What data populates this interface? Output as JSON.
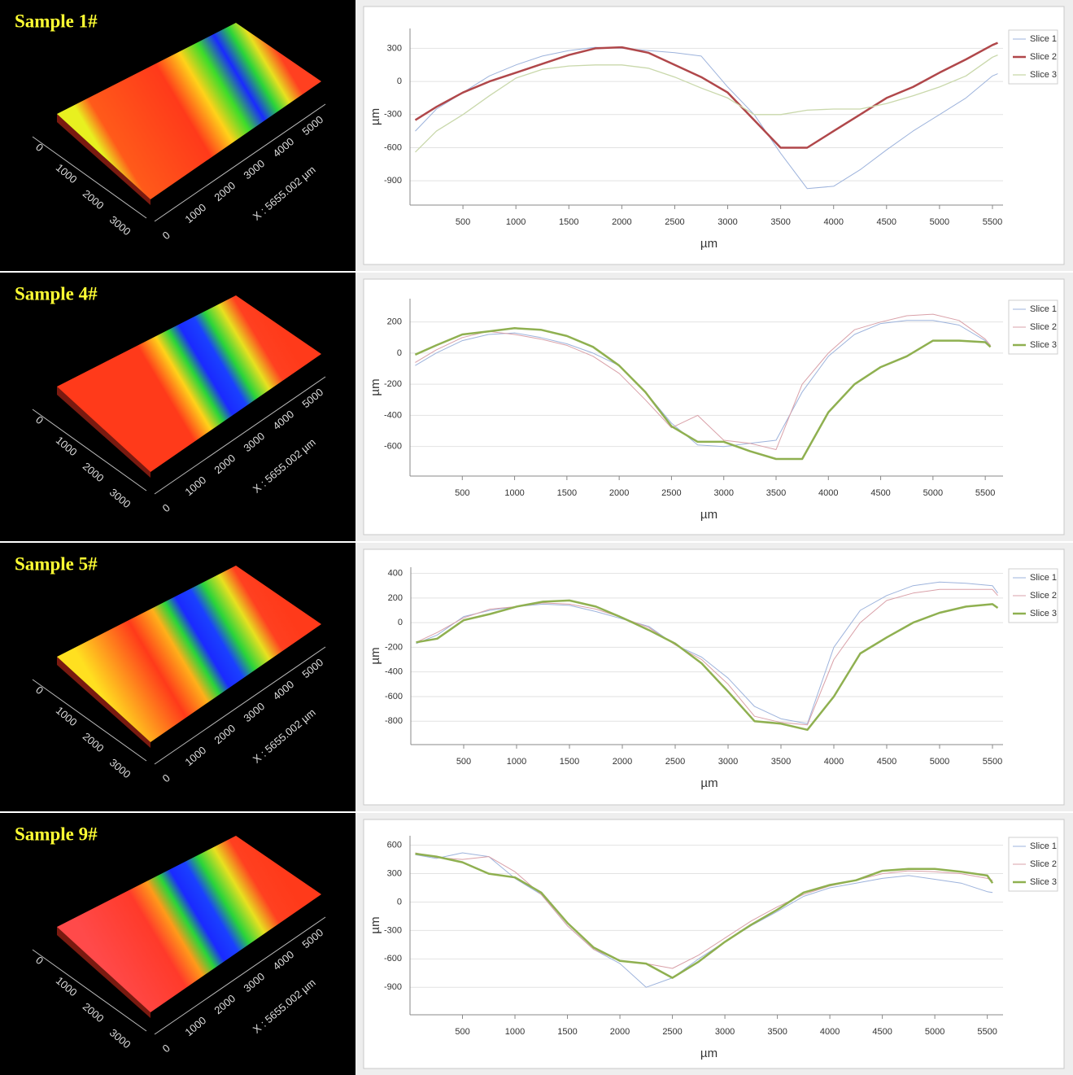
{
  "chart_data": [
    {
      "type": "line",
      "title": "Sample 1#",
      "surface": {
        "x_label": "X : 5655.002 µm",
        "x_ticks": [
          0,
          1000,
          2000,
          3000,
          4000,
          5000
        ],
        "y_ticks": [
          0,
          1000,
          2000,
          3000
        ]
      },
      "xlabel": "µm",
      "ylabel": "µm",
      "grid": true,
      "legend": "right",
      "xlim": [
        0,
        5600
      ],
      "ylim": [
        -1120,
        480
      ],
      "xticks": [
        500,
        1000,
        1500,
        2000,
        2500,
        3000,
        3500,
        4000,
        4500,
        5000,
        5500
      ],
      "yticks": [
        300,
        0,
        -300,
        -600,
        -900
      ],
      "x": [
        50,
        250,
        500,
        750,
        1000,
        1250,
        1500,
        1750,
        2000,
        2250,
        2500,
        2750,
        3000,
        3250,
        3500,
        3750,
        4000,
        4250,
        4500,
        4750,
        5000,
        5250,
        5500,
        5550
      ],
      "series": [
        {
          "name": "Slice 1",
          "color": "#9db3dc",
          "line_width": 1,
          "values": [
            -450,
            -250,
            -100,
            50,
            150,
            230,
            280,
            310,
            300,
            280,
            260,
            230,
            -50,
            -300,
            -650,
            -970,
            -950,
            -800,
            -620,
            -450,
            -300,
            -150,
            50,
            70
          ]
        },
        {
          "name": "Slice 2",
          "color": "#b0474a",
          "line_width": 2.5,
          "values": [
            -350,
            -230,
            -100,
            0,
            80,
            160,
            240,
            300,
            310,
            260,
            150,
            40,
            -100,
            -350,
            -600,
            -600,
            -450,
            -300,
            -150,
            -50,
            80,
            200,
            330,
            350
          ]
        },
        {
          "name": "Slice 3",
          "color": "#c9d8ab",
          "line_width": 1.3,
          "values": [
            -640,
            -450,
            -300,
            -130,
            30,
            110,
            140,
            150,
            150,
            120,
            40,
            -60,
            -150,
            -300,
            -300,
            -260,
            -250,
            -250,
            -200,
            -130,
            -50,
            50,
            220,
            240
          ]
        }
      ]
    },
    {
      "type": "line",
      "title": "Sample 4#",
      "surface": {
        "x_label": "X : 5655.002 µm",
        "x_ticks": [
          0,
          1000,
          2000,
          3000,
          4000,
          5000
        ],
        "y_ticks": [
          0,
          1000,
          2000,
          3000
        ]
      },
      "xlabel": "µm",
      "ylabel": "µm",
      "grid": true,
      "legend": "right",
      "xlim": [
        0,
        5670
      ],
      "ylim": [
        -790,
        350
      ],
      "xticks": [
        500,
        1000,
        1500,
        2000,
        2500,
        3000,
        3500,
        4000,
        4500,
        5000,
        5500
      ],
      "yticks": [
        200,
        0,
        -200,
        -400,
        -600
      ],
      "x": [
        50,
        250,
        500,
        750,
        1000,
        1250,
        1500,
        1750,
        2000,
        2250,
        2500,
        2750,
        3000,
        3250,
        3500,
        3750,
        4000,
        4250,
        4500,
        4750,
        5000,
        5250,
        5500,
        5550
      ],
      "series": [
        {
          "name": "Slice 1",
          "color": "#9db3dc",
          "line_width": 1,
          "values": [
            -80,
            0,
            80,
            120,
            130,
            100,
            60,
            0,
            -80,
            -250,
            -450,
            -590,
            -600,
            -580,
            -560,
            -250,
            -20,
            120,
            190,
            210,
            210,
            180,
            80,
            50
          ]
        },
        {
          "name": "Slice 2",
          "color": "#d9a0a8",
          "line_width": 1,
          "values": [
            -60,
            20,
            100,
            140,
            120,
            90,
            50,
            -20,
            -130,
            -300,
            -480,
            -400,
            -560,
            -580,
            -620,
            -200,
            0,
            150,
            200,
            240,
            250,
            210,
            90,
            50
          ]
        },
        {
          "name": "Slice 3",
          "color": "#8fb050",
          "line_width": 2.5,
          "values": [
            -10,
            50,
            120,
            140,
            160,
            150,
            110,
            40,
            -80,
            -250,
            -470,
            -570,
            -570,
            -630,
            -680,
            -680,
            -380,
            -200,
            -90,
            -20,
            80,
            80,
            70,
            40
          ]
        }
      ]
    },
    {
      "type": "line",
      "title": "Sample 5#",
      "surface": {
        "x_label": "X : 5655.002 µm",
        "x_ticks": [
          0,
          1000,
          2000,
          3000,
          4000,
          5000
        ],
        "y_ticks": [
          0,
          1000,
          2000,
          3000
        ]
      },
      "xlabel": "µm",
      "ylabel": "µm",
      "grid": true,
      "legend": "right",
      "xlim": [
        0,
        5600
      ],
      "ylim": [
        -990,
        450
      ],
      "xticks": [
        500,
        1000,
        1500,
        2000,
        2500,
        3000,
        3500,
        4000,
        4500,
        5000,
        5500
      ],
      "yticks": [
        400,
        200,
        0,
        -200,
        -400,
        -600,
        -800
      ],
      "x": [
        50,
        250,
        500,
        750,
        1000,
        1250,
        1500,
        1750,
        2000,
        2250,
        2500,
        2750,
        3000,
        3250,
        3500,
        3750,
        4000,
        4250,
        4500,
        4750,
        5000,
        5250,
        5500,
        5550
      ],
      "series": [
        {
          "name": "Slice 1",
          "color": "#9db3dc",
          "line_width": 1,
          "values": [
            -170,
            -100,
            50,
            100,
            130,
            150,
            140,
            90,
            30,
            -30,
            -180,
            -280,
            -450,
            -680,
            -780,
            -820,
            -200,
            100,
            220,
            300,
            330,
            320,
            300,
            240
          ]
        },
        {
          "name": "Slice 2",
          "color": "#d9a0a8",
          "line_width": 1,
          "values": [
            -160,
            -80,
            40,
            110,
            130,
            160,
            150,
            110,
            40,
            -40,
            -180,
            -300,
            -500,
            -760,
            -810,
            -830,
            -300,
            0,
            180,
            240,
            270,
            270,
            270,
            220
          ]
        },
        {
          "name": "Slice 3",
          "color": "#8fb050",
          "line_width": 2.5,
          "values": [
            -160,
            -130,
            20,
            70,
            130,
            170,
            180,
            130,
            40,
            -60,
            -170,
            -330,
            -560,
            -800,
            -820,
            -870,
            -600,
            -250,
            -120,
            0,
            80,
            130,
            150,
            120
          ]
        }
      ]
    },
    {
      "type": "line",
      "title": "Sample 9#",
      "surface": {
        "x_label": "X : 5655.002 µm",
        "x_ticks": [
          0,
          1000,
          2000,
          3000,
          4000,
          5000
        ],
        "y_ticks": [
          0,
          1000,
          2000,
          3000
        ]
      },
      "xlabel": "µm",
      "ylabel": "µm",
      "grid": true,
      "legend": "right",
      "xlim": [
        0,
        5650
      ],
      "ylim": [
        -1190,
        700
      ],
      "xticks": [
        500,
        1000,
        1500,
        2000,
        2500,
        3000,
        3500,
        4000,
        4500,
        5000,
        5500
      ],
      "yticks": [
        600,
        300,
        0,
        -300,
        -600,
        -900
      ],
      "x": [
        50,
        250,
        500,
        750,
        1000,
        1250,
        1500,
        1750,
        2000,
        2250,
        2500,
        2750,
        3000,
        3250,
        3500,
        3750,
        4000,
        4250,
        4500,
        4750,
        5000,
        5250,
        5500,
        5550
      ],
      "series": [
        {
          "name": "Slice 1",
          "color": "#9db3dc",
          "line_width": 1,
          "values": [
            500,
            460,
            520,
            480,
            250,
            80,
            -250,
            -500,
            -650,
            -900,
            -800,
            -600,
            -420,
            -250,
            -100,
            60,
            150,
            200,
            250,
            280,
            240,
            200,
            110,
            100
          ]
        },
        {
          "name": "Slice 2",
          "color": "#d9a0a8",
          "line_width": 1,
          "values": [
            520,
            470,
            450,
            480,
            320,
            80,
            -250,
            -500,
            -620,
            -650,
            -700,
            -560,
            -380,
            -200,
            -50,
            80,
            170,
            230,
            300,
            330,
            320,
            300,
            250,
            230
          ]
        },
        {
          "name": "Slice 3",
          "color": "#8fb050",
          "line_width": 2.5,
          "values": [
            510,
            480,
            420,
            300,
            260,
            100,
            -220,
            -480,
            -620,
            -650,
            -800,
            -630,
            -420,
            -240,
            -80,
            100,
            180,
            230,
            330,
            350,
            350,
            320,
            280,
            200
          ]
        }
      ]
    }
  ]
}
